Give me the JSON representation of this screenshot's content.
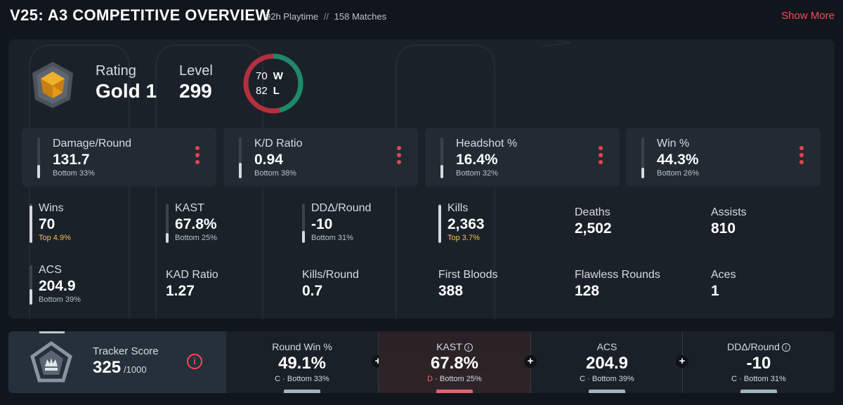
{
  "header": {
    "title": "V25: A3 COMPETITIVE OVERVIEW",
    "playtime": "92h Playtime",
    "separator": "//",
    "matches": "158 Matches",
    "show_more": "Show More"
  },
  "summary": {
    "rating_label": "Rating",
    "rating_value": "Gold 1",
    "level_label": "Level",
    "level_value": "299",
    "wins": "70",
    "wins_letter": "W",
    "losses": "82",
    "losses_letter": "L",
    "win_fraction": 0.4605,
    "colors": {
      "win": "#1d8a6a",
      "loss": "#b3303f",
      "rank_gold": "#e8a524"
    }
  },
  "main_stats": [
    {
      "label": "Damage/Round",
      "value": "131.7",
      "sub": "Bottom 33%",
      "fill_fraction": 0.33
    },
    {
      "label": "K/D Ratio",
      "value": "0.94",
      "sub": "Bottom 38%",
      "fill_fraction": 0.38
    },
    {
      "label": "Headshot %",
      "value": "16.4%",
      "sub": "Bottom 32%",
      "fill_fraction": 0.32
    },
    {
      "label": "Win %",
      "value": "44.3%",
      "sub": "Bottom 26%",
      "fill_fraction": 0.26
    }
  ],
  "row1": [
    {
      "label": "Wins",
      "value": "70",
      "sub": "Top 4.9%",
      "sub_kind": "top",
      "fill_fraction": 0.95
    },
    {
      "label": "KAST",
      "value": "67.8%",
      "sub": "Bottom 25%",
      "sub_kind": "bottom",
      "fill_fraction": 0.25
    },
    {
      "label": "DDΔ/Round",
      "value": "-10",
      "sub": "Bottom 31%",
      "sub_kind": "bottom",
      "fill_fraction": 0.31
    },
    {
      "label": "Kills",
      "value": "2,363",
      "sub": "Top 3.7%",
      "sub_kind": "top",
      "fill_fraction": 0.96
    },
    {
      "label": "Deaths",
      "value": "2,502"
    },
    {
      "label": "Assists",
      "value": "810"
    }
  ],
  "row2": [
    {
      "label": "ACS",
      "value": "204.9",
      "sub": "Bottom 39%",
      "sub_kind": "bottom",
      "fill_fraction": 0.39
    },
    {
      "label": "KAD Ratio",
      "value": "1.27"
    },
    {
      "label": "Kills/Round",
      "value": "0.7"
    },
    {
      "label": "First Bloods",
      "value": "388"
    },
    {
      "label": "Flawless Rounds",
      "value": "128"
    },
    {
      "label": "Aces",
      "value": "1"
    }
  ],
  "tracker": {
    "label": "Tracker Score",
    "value": "325",
    "max": "/1000",
    "info_icon": "info-icon",
    "columns": [
      {
        "label": "Round Win %",
        "value": "49.1%",
        "grade": "C",
        "sub": "Bottom 33%",
        "pill_color": "#9fb4c0"
      },
      {
        "label": "KAST",
        "value": "67.8%",
        "grade": "D",
        "sub": "Bottom 25%",
        "pill_color": "#e0656f"
      },
      {
        "label": "ACS",
        "value": "204.9",
        "grade": "C",
        "sub": "Bottom 39%",
        "pill_color": "#9fb4c0"
      },
      {
        "label": "DDΔ/Round",
        "value": "-10",
        "grade": "C",
        "sub": "Bottom 31%",
        "pill_color": "#9fb4c0"
      }
    ]
  }
}
